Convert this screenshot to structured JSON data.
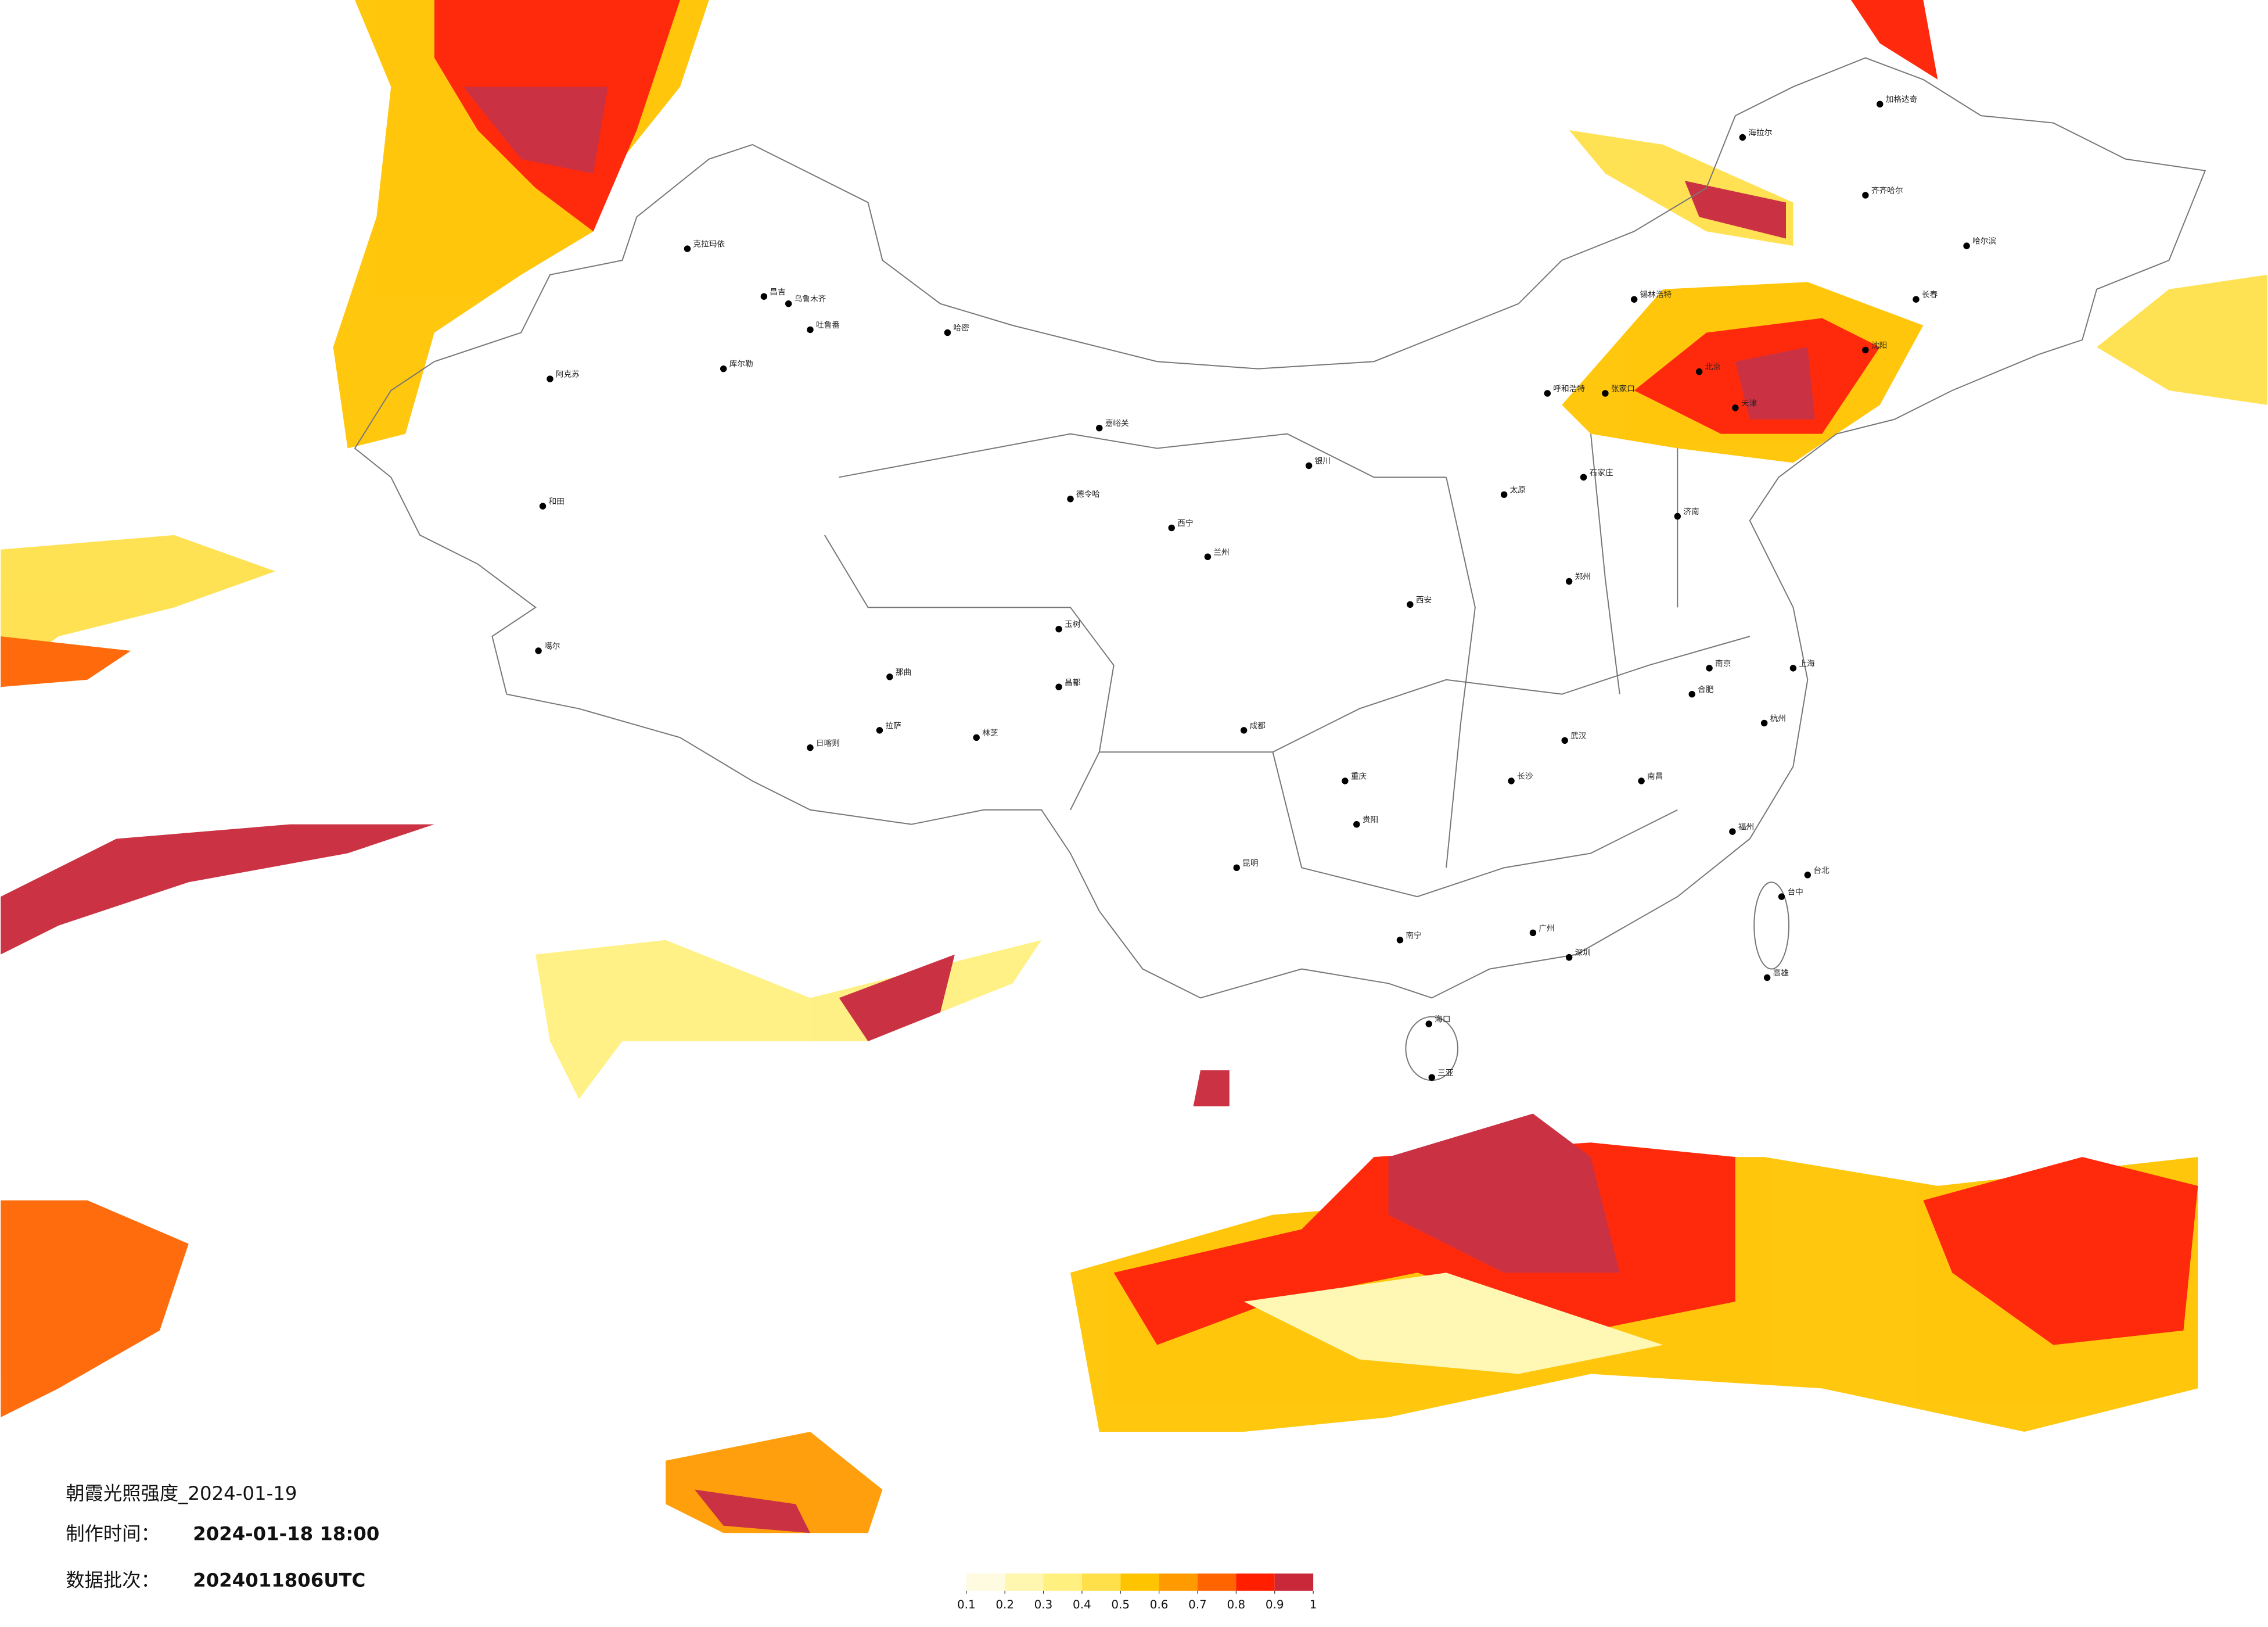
{
  "header": {
    "title": "朝霞光照强度_2024-01-19",
    "made_label": "制作时间：",
    "made_time": "2024-01-18 18:00",
    "batch_label": "数据批次：",
    "batch": "2024011806UTC"
  },
  "legend": {
    "colors": [
      "#fffbe0",
      "#fff7b0",
      "#fff080",
      "#ffe04a",
      "#ffc400",
      "#ff9a00",
      "#ff6400",
      "#ff1e00",
      "#c8283a"
    ],
    "ticks": [
      0.1,
      0.2,
      0.3,
      0.4,
      0.5,
      0.6,
      0.7,
      0.8,
      0.9,
      1
    ]
  },
  "cities": [
    "克拉玛依",
    "昌吉",
    "乌鲁木齐",
    "吐鲁番",
    "哈密",
    "库尔勒",
    "阿克苏",
    "和田",
    "噶尔",
    "日喀则",
    "拉萨",
    "林芝",
    "那曲",
    "昌都",
    "玉树",
    "德令哈",
    "嘉峪关",
    "西宁",
    "兰州",
    "成都",
    "重庆",
    "昆明",
    "贵阳",
    "南宁",
    "海口",
    "三亚",
    "广州",
    "深圳",
    "福州",
    "台北",
    "上海",
    "南京",
    "武汉",
    "长沙",
    "郑州",
    "西安",
    "太原",
    "北京",
    "天津",
    "沈阳",
    "长春",
    "哈尔滨",
    "呼和浩特",
    "银川",
    "济南",
    "加格达奇",
    "海拉尔",
    "齐齐哈尔",
    "锡林浩特",
    "张家口",
    "石家庄",
    "杭州",
    "南昌",
    "合肥",
    "台中",
    "高雄"
  ]
}
